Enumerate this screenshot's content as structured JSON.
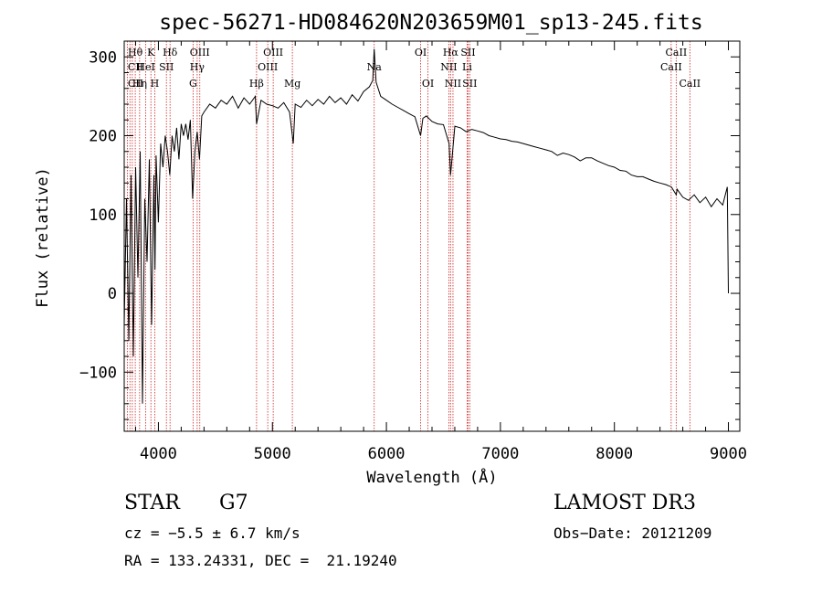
{
  "chart_data": {
    "type": "line",
    "title": "spec-56271-HD084620N203659M01_sp13-245.fits",
    "xlabel": "Wavelength (Å)",
    "ylabel": "Flux (relative)",
    "xlim": [
      3700,
      9100
    ],
    "ylim": [
      -175,
      320
    ],
    "xticks": [
      4000,
      5000,
      6000,
      7000,
      8000,
      9000
    ],
    "xtick_labels": [
      "4000",
      "5000",
      "6000",
      "7000",
      "8000",
      "9000"
    ],
    "yticks": [
      -100,
      0,
      100,
      200,
      300
    ],
    "ytick_labels": [
      "−100",
      "0",
      "100",
      "200",
      "300"
    ],
    "series": [
      {
        "name": "flux",
        "x": [
          3700,
          3720,
          3740,
          3760,
          3780,
          3800,
          3820,
          3840,
          3860,
          3880,
          3900,
          3920,
          3940,
          3960,
          3970,
          3980,
          4000,
          4020,
          4040,
          4060,
          4080,
          4100,
          4120,
          4140,
          4160,
          4180,
          4200,
          4220,
          4240,
          4260,
          4280,
          4300,
          4320,
          4340,
          4360,
          4380,
          4400,
          4450,
          4500,
          4550,
          4600,
          4650,
          4700,
          4750,
          4800,
          4850,
          4861,
          4900,
          4950,
          5000,
          5050,
          5100,
          5150,
          5183,
          5200,
          5250,
          5300,
          5350,
          5400,
          5450,
          5500,
          5550,
          5600,
          5650,
          5700,
          5750,
          5800,
          5850,
          5880,
          5893,
          5910,
          5950,
          6000,
          6050,
          6100,
          6150,
          6200,
          6250,
          6300,
          6320,
          6350,
          6400,
          6450,
          6500,
          6550,
          6563,
          6600,
          6650,
          6700,
          6750,
          6800,
          6850,
          6900,
          6950,
          7000,
          7050,
          7100,
          7150,
          7200,
          7250,
          7300,
          7350,
          7400,
          7450,
          7500,
          7550,
          7600,
          7650,
          7700,
          7750,
          7800,
          7850,
          7900,
          7950,
          8000,
          8050,
          8100,
          8150,
          8200,
          8250,
          8300,
          8350,
          8400,
          8450,
          8500,
          8542,
          8550,
          8600,
          8650,
          8700,
          8750,
          8800,
          8850,
          8900,
          8950,
          8990,
          9000
        ],
        "y": [
          -40,
          120,
          -60,
          150,
          -80,
          160,
          20,
          180,
          -140,
          120,
          40,
          170,
          -40,
          150,
          30,
          175,
          90,
          190,
          160,
          200,
          180,
          150,
          200,
          180,
          210,
          170,
          215,
          200,
          215,
          195,
          220,
          120,
          180,
          205,
          170,
          225,
          230,
          240,
          235,
          245,
          240,
          250,
          235,
          248,
          240,
          250,
          215,
          245,
          240,
          238,
          235,
          242,
          230,
          190,
          240,
          236,
          245,
          238,
          246,
          240,
          250,
          242,
          248,
          240,
          252,
          244,
          256,
          262,
          270,
          310,
          268,
          250,
          245,
          240,
          236,
          232,
          228,
          224,
          200,
          222,
          225,
          218,
          215,
          214,
          190,
          150,
          212,
          210,
          205,
          208,
          206,
          204,
          200,
          198,
          196,
          195,
          193,
          192,
          190,
          188,
          186,
          184,
          182,
          180,
          175,
          178,
          176,
          173,
          168,
          172,
          172,
          168,
          165,
          162,
          160,
          156,
          155,
          150,
          148,
          148,
          145,
          142,
          140,
          138,
          135,
          125,
          132,
          122,
          118,
          125,
          115,
          122,
          110,
          120,
          112,
          135,
          0
        ]
      }
    ],
    "line_labels": [
      {
        "label": "Hθ",
        "x": 3797,
        "row": 1
      },
      {
        "label": "CII",
        "x": 3800,
        "row": 2
      },
      {
        "label": "CII",
        "x": 3800,
        "row": 3
      },
      {
        "label": "K",
        "x": 3934,
        "row": 1
      },
      {
        "label": "HeI",
        "x": 3889,
        "row": 2
      },
      {
        "label": "Hη",
        "x": 3835,
        "row": 3
      },
      {
        "label": "Hδ",
        "x": 4102,
        "row": 1
      },
      {
        "label": "SII",
        "x": 4070,
        "row": 2
      },
      {
        "label": "H",
        "x": 3968,
        "row": 3
      },
      {
        "label": "OIII",
        "x": 4363,
        "row": 1
      },
      {
        "label": "Hγ",
        "x": 4340,
        "row": 2
      },
      {
        "label": "G",
        "x": 4304,
        "row": 3
      },
      {
        "label": "Hβ",
        "x": 4861,
        "row": 3
      },
      {
        "label": "OIII",
        "x": 5007,
        "row": 1
      },
      {
        "label": "OIII",
        "x": 4959,
        "row": 2
      },
      {
        "label": "Mg",
        "x": 5175,
        "row": 3
      },
      {
        "label": "Na",
        "x": 5893,
        "row": 2
      },
      {
        "label": "OI",
        "x": 6300,
        "row": 1
      },
      {
        "label": "OI",
        "x": 6364,
        "row": 3
      },
      {
        "label": "Hα",
        "x": 6563,
        "row": 1
      },
      {
        "label": "SII",
        "x": 6716,
        "row": 1
      },
      {
        "label": "NII",
        "x": 6548,
        "row": 2
      },
      {
        "label": "Li",
        "x": 6708,
        "row": 2
      },
      {
        "label": "NII",
        "x": 6584,
        "row": 3
      },
      {
        "label": "SII",
        "x": 6731,
        "row": 3
      },
      {
        "label": "CaII",
        "x": 8542,
        "row": 1
      },
      {
        "label": "CaII",
        "x": 8498,
        "row": 2
      },
      {
        "label": "CaII",
        "x": 8662,
        "row": 3
      }
    ],
    "line_positions": [
      3727,
      3750,
      3771,
      3797,
      3835,
      3889,
      3934,
      3968,
      4070,
      4102,
      4304,
      4340,
      4363,
      4861,
      4959,
      5007,
      5175,
      5893,
      6300,
      6364,
      6548,
      6563,
      6584,
      6708,
      6716,
      6731,
      8498,
      8542,
      8662
    ]
  },
  "info": {
    "obj_type": "STAR",
    "subclass": "G7",
    "survey": "LAMOST DR3",
    "cz": "cz = −5.5 ± 6.7 km/s",
    "obs_date": "Obs−Date: 20121209",
    "coords": "RA = 133.24331, DEC =  21.19240"
  },
  "colors": {
    "line_marker": "#cc2222",
    "spectrum": "#000000"
  }
}
